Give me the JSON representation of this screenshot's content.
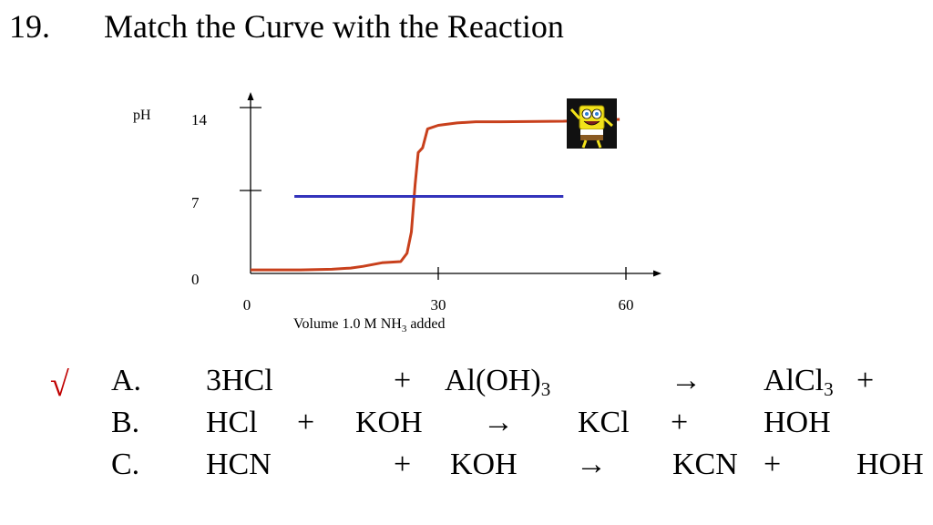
{
  "slide": {
    "number": "19.",
    "title": "Match the Curve with the Reaction"
  },
  "chart_data": {
    "type": "line",
    "ylabel": "pH",
    "xlabel_main": "Volume 1.0 M NH",
    "xlabel_sub": "3",
    "xlabel_tail": " added",
    "x_ticks": [
      "0",
      "30",
      "60"
    ],
    "y_ticks": [
      "0",
      "7",
      "14"
    ],
    "xlim": [
      0,
      60
    ],
    "ylim": [
      0,
      14
    ],
    "series": [
      {
        "color": "#c8401c",
        "points": [
          [
            0,
            0.3
          ],
          [
            8,
            0.3
          ],
          [
            13,
            0.35
          ],
          [
            16,
            0.45
          ],
          [
            18,
            0.6
          ],
          [
            21,
            0.9
          ],
          [
            24,
            1.0
          ],
          [
            25,
            1.7
          ],
          [
            25.7,
            3.5
          ],
          [
            26.3,
            7.5
          ],
          [
            26.8,
            10.2
          ],
          [
            27.5,
            10.6
          ],
          [
            28.3,
            12.2
          ],
          [
            30,
            12.5
          ],
          [
            33,
            12.7
          ],
          [
            36,
            12.8
          ],
          [
            40,
            12.8
          ],
          [
            50,
            12.85
          ],
          [
            59,
            13.0
          ]
        ]
      },
      {
        "color": "#3333bb",
        "points": [
          [
            7,
            6.5
          ],
          [
            50,
            6.5
          ]
        ]
      }
    ]
  },
  "check_mark": "√",
  "answers": [
    {
      "letter": "A.",
      "c1": "3HCl",
      "c2": "+",
      "c3_main": "Al(OH)",
      "c3_sub": "3",
      "c4": "→",
      "c5_main": "AlCl",
      "c5_sub": "3",
      "c6": "+"
    },
    {
      "letter": "B.",
      "c1": "HCl",
      "c2": "+",
      "c3": "KOH",
      "c4": "→",
      "c5": "KCl",
      "c6": "+",
      "c7": "HOH"
    },
    {
      "letter": "C.",
      "c1": "HCN",
      "c2": "+",
      "c3": "KOH",
      "c4": "→",
      "c5": "KCN",
      "c6": "+",
      "c7": "HOH"
    }
  ],
  "sticker_icon": "spongebob-cartoon-icon"
}
